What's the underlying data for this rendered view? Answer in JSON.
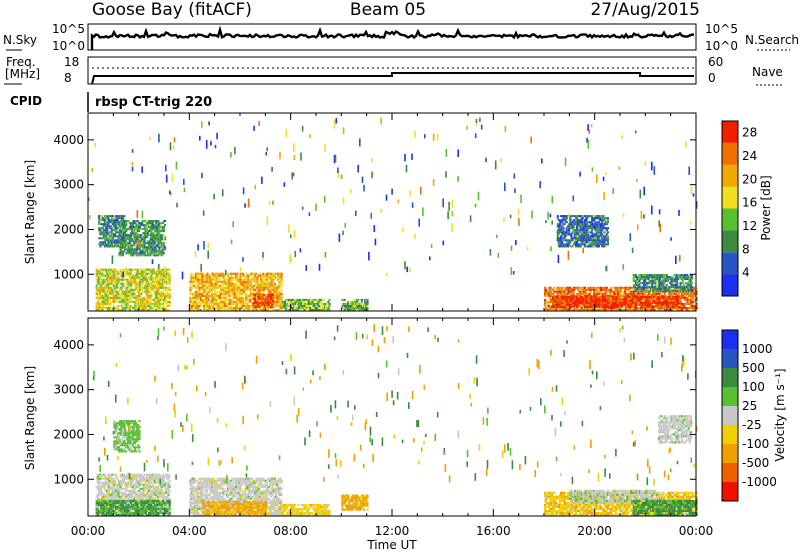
{
  "header": {
    "station": "Goose Bay (fitACF)",
    "beam": "Beam 05",
    "date": "27/Aug/2015"
  },
  "top_panels": {
    "nsky_label": "N.Sky",
    "nsky_ticks": [
      "10^5",
      "10^0"
    ],
    "nsearch_label": "N.Search",
    "nsearch_ticks": [
      "10^5",
      "10^0"
    ],
    "freq_label": "Freq.",
    "freq_unit": "[MHz]",
    "freq_ticks": [
      "18",
      "8"
    ],
    "nave_label": "Nave",
    "nave_ticks": [
      "60",
      "0"
    ],
    "cpid_label": "CPID",
    "cpid_text": "rbsp CT-trig 220"
  },
  "colors": {
    "power_scale": [
      "#1a2ff0",
      "#2a55c0",
      "#3a8a40",
      "#58c030",
      "#f0e020",
      "#f0a800",
      "#f07000",
      "#f02000"
    ],
    "velocity_scale": [
      "#1a2ff0",
      "#2a55c0",
      "#3a8a40",
      "#58c030",
      "#c8c8c8",
      "#f0d000",
      "#f0a000",
      "#f06000",
      "#f01000"
    ]
  },
  "chart_data": [
    {
      "type": "heatmap",
      "name": "power",
      "ylabel": "Slant Range [km]",
      "xlabel": "Time UT",
      "x_ticks": [
        "00:00",
        "04:00",
        "08:00",
        "12:00",
        "16:00",
        "20:00",
        "00:00"
      ],
      "y_ticks": [
        "1000",
        "2000",
        "3000",
        "4000"
      ],
      "xlim_hours": [
        0,
        24
      ],
      "ylim_km": [
        180,
        4600
      ],
      "colorbar_label": "Power [dB]",
      "colorbar_ticks": [
        "4",
        "8",
        "12",
        "16",
        "20",
        "24",
        "28"
      ],
      "colorbar_range": [
        0,
        30
      ],
      "regions": [
        {
          "t": [
            0.3,
            3.2
          ],
          "r": [
            180,
            1100
          ],
          "v": 17
        },
        {
          "t": [
            0.4,
            1.4
          ],
          "r": [
            1600,
            2300
          ],
          "v": 8
        },
        {
          "t": [
            1.2,
            3.0
          ],
          "r": [
            1400,
            2200
          ],
          "v": 10
        },
        {
          "t": [
            4.0,
            7.6
          ],
          "r": [
            180,
            1000
          ],
          "v": 20
        },
        {
          "t": [
            6.5,
            7.3
          ],
          "r": [
            250,
            550
          ],
          "v": 27
        },
        {
          "t": [
            7.6,
            9.5
          ],
          "r": [
            180,
            450
          ],
          "v": 13
        },
        {
          "t": [
            10.0,
            11.0
          ],
          "r": [
            180,
            450
          ],
          "v": 12
        },
        {
          "t": [
            18.0,
            24.0
          ],
          "r": [
            180,
            700
          ],
          "v": 24
        },
        {
          "t": [
            18.3,
            23.3
          ],
          "r": [
            250,
            480
          ],
          "v": 28
        },
        {
          "t": [
            21.5,
            23.8
          ],
          "r": [
            600,
            1000
          ],
          "v": 9
        },
        {
          "t": [
            18.5,
            20.5
          ],
          "r": [
            1600,
            2300
          ],
          "v": 7
        }
      ]
    },
    {
      "type": "heatmap",
      "name": "velocity",
      "ylabel": "Slant Range [km]",
      "xlabel": "Time UT",
      "x_ticks": [
        "00:00",
        "04:00",
        "08:00",
        "12:00",
        "16:00",
        "20:00",
        "00:00"
      ],
      "y_ticks": [
        "1000",
        "2000",
        "3000",
        "4000"
      ],
      "xlim_hours": [
        0,
        24
      ],
      "ylim_km": [
        180,
        4600
      ],
      "colorbar_label": "Velocity [m s⁻¹]",
      "colorbar_ticks": [
        "1000",
        "500",
        "100",
        "25",
        "-25",
        "-100",
        "-500",
        "-1000"
      ],
      "regions": [
        {
          "t": [
            0.3,
            3.2
          ],
          "r": [
            180,
            1100
          ],
          "v": 0
        },
        {
          "t": [
            0.3,
            3.2
          ],
          "r": [
            180,
            500
          ],
          "v": 120
        },
        {
          "t": [
            1.0,
            2.0
          ],
          "r": [
            1600,
            2300
          ],
          "v": 50
        },
        {
          "t": [
            4.0,
            7.6
          ],
          "r": [
            180,
            1000
          ],
          "v": 0
        },
        {
          "t": [
            4.5,
            7.0
          ],
          "r": [
            200,
            500
          ],
          "v": -150
        },
        {
          "t": [
            7.6,
            9.5
          ],
          "r": [
            180,
            450
          ],
          "v": -60
        },
        {
          "t": [
            10.0,
            11.0
          ],
          "r": [
            300,
            650
          ],
          "v": -180
        },
        {
          "t": [
            18.0,
            24.0
          ],
          "r": [
            180,
            700
          ],
          "v": -80
        },
        {
          "t": [
            19.0,
            22.5
          ],
          "r": [
            450,
            750
          ],
          "v": 10
        },
        {
          "t": [
            21.5,
            24.0
          ],
          "r": [
            180,
            500
          ],
          "v": 150
        },
        {
          "t": [
            22.5,
            23.8
          ],
          "r": [
            1800,
            2400
          ],
          "v": 5
        }
      ]
    }
  ]
}
